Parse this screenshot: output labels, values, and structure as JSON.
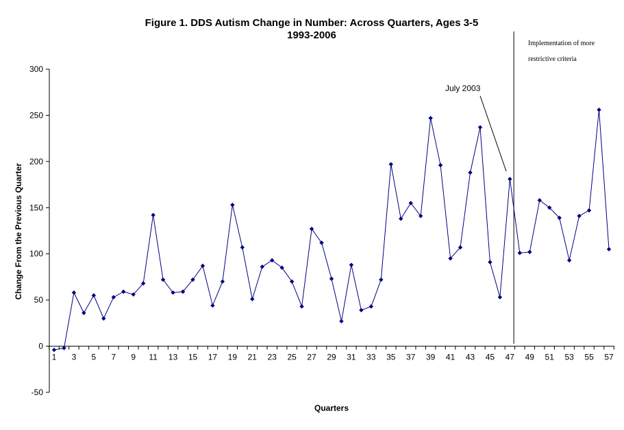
{
  "chart_data": {
    "type": "line",
    "title": "Figure 1. DDS Autism Change in Number: Across Quarters, Ages 3-5",
    "subtitle": "1993-2006",
    "xlabel": "Quarters",
    "ylabel": "Change From the Previous Quarter",
    "ylim": [
      -50,
      300
    ],
    "yticks": [
      -50,
      0,
      50,
      100,
      150,
      200,
      250,
      300
    ],
    "xlim": [
      1,
      57
    ],
    "xticks": [
      1,
      3,
      5,
      7,
      9,
      11,
      13,
      15,
      17,
      19,
      21,
      23,
      25,
      27,
      29,
      31,
      33,
      35,
      37,
      39,
      41,
      43,
      45,
      47,
      49,
      51,
      53,
      55,
      57
    ],
    "grid": false,
    "legend": "none",
    "line_color": "#000080",
    "series": [
      {
        "x": [
          1,
          2,
          3,
          4,
          5,
          6,
          7,
          8,
          9,
          10,
          11,
          12,
          13,
          14,
          15,
          16,
          17,
          18,
          19,
          20,
          21,
          22,
          23,
          24,
          25,
          26,
          27,
          28,
          29,
          30,
          31,
          32,
          33,
          34,
          35,
          36,
          37,
          38,
          39,
          40,
          41,
          42,
          43,
          44,
          45,
          46,
          47,
          48,
          49,
          50,
          51,
          52,
          53,
          54,
          55,
          56,
          57
        ],
        "values": [
          -4,
          -2,
          58,
          36,
          55,
          30,
          53,
          59,
          56,
          68,
          142,
          72,
          58,
          59,
          72,
          87,
          44,
          70,
          153,
          107,
          51,
          86,
          93,
          85,
          70,
          43,
          127,
          112,
          73,
          27,
          88,
          39,
          43,
          72,
          197,
          138,
          155,
          141,
          247,
          196,
          95,
          107,
          188,
          237,
          91,
          53,
          181,
          101,
          102,
          158,
          150,
          139,
          93,
          141,
          147,
          256,
          105
        ]
      }
    ],
    "vertical_line_at": 47.4,
    "annotations": {
      "july": "July 2003",
      "implementation_line1": "Implementation of more",
      "implementation_line2": "restrictive criteria"
    }
  }
}
